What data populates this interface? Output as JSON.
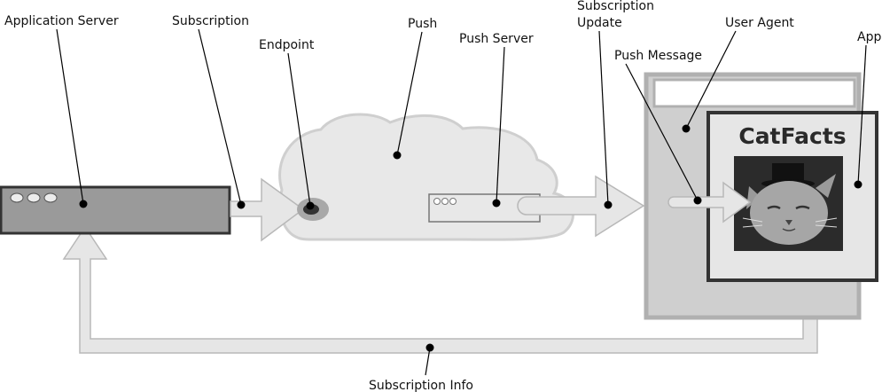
{
  "labels": {
    "application_server": "Application Server",
    "subscription": "Subscription",
    "endpoint": "Endpoint",
    "push": "Push",
    "push_server": "Push Server",
    "subscription_update_line1": "Subscription",
    "subscription_update_line2": "Update",
    "user_agent": "User Agent",
    "push_message": "Push Message",
    "app": "App",
    "subscription_info": "Subscription Info"
  },
  "app_brand": "CatFacts",
  "colors": {
    "server_fill": "#9a9a9a",
    "server_border": "#333333",
    "cloud_fill": "#e8e8e8",
    "cloud_stroke": "#cfcfcf",
    "arrow_fill": "#e6e6e6",
    "arrow_stroke": "#b8b8b8",
    "user_agent_fill": "#cfcfcf",
    "user_agent_border": "#b0b0b0",
    "app_border": "#333333",
    "app_fill": "#e6e6e6",
    "photo_bg": "#2b2b2b"
  },
  "icons": [
    "server-lights-icon",
    "endpoint-icon",
    "cat-photo-icon"
  ]
}
